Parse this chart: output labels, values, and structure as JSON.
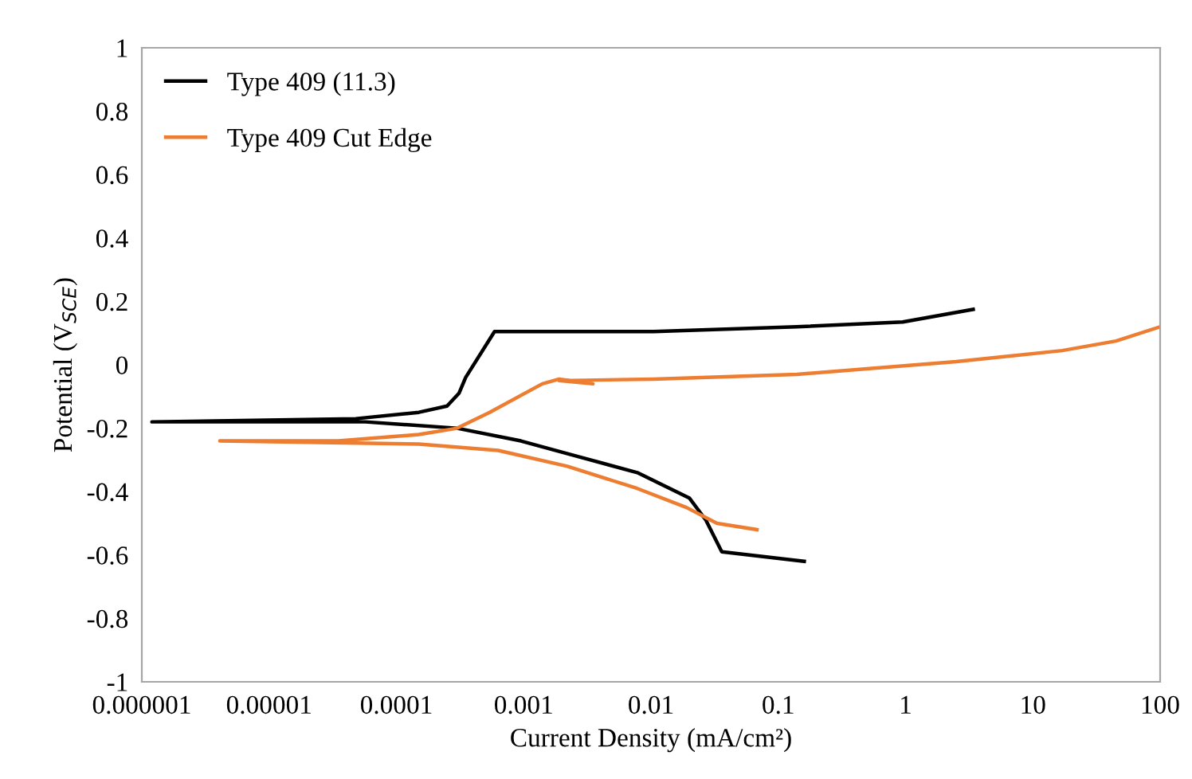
{
  "chart_data": {
    "type": "line",
    "xlabel": "Current Density (mA/cm²)",
    "ylabel": "Potential (V$_{SCE}$)",
    "log": "x",
    "grid": false,
    "legend": "top left",
    "marker": "none",
    "line_style": "solid",
    "xlim": [
      1e-06,
      100
    ],
    "ylim": [
      -1,
      1
    ],
    "xticks": [
      {
        "value": 1e-06,
        "label": "0.000001"
      },
      {
        "value": 1e-05,
        "label": "0.00001"
      },
      {
        "value": 0.0001,
        "label": "0.0001"
      },
      {
        "value": 0.001,
        "label": "0.001"
      },
      {
        "value": 0.01,
        "label": "0.01"
      },
      {
        "value": 0.1,
        "label": "0.1"
      },
      1,
      10,
      100
    ],
    "yticks": [
      -1,
      -0.8,
      -0.6,
      -0.4,
      -0.2,
      0,
      0.2,
      0.4,
      0.6,
      0.8,
      1
    ],
    "series": [
      {
        "name": "Type 409 (11.3)",
        "color": "#000000",
        "x": [
          0.16,
          0.036,
          0.027,
          0.02,
          0.0078,
          0.0027,
          0.00095,
          0.0003,
          5.7e-05,
          1.2e-06,
          4.8e-05,
          0.00015,
          0.00025,
          0.00031,
          0.00035,
          0.00059,
          0.0105,
          0.14,
          0.95,
          3.4
        ],
        "values": [
          -0.62,
          -0.59,
          -0.49,
          -0.42,
          -0.34,
          -0.29,
          -0.24,
          -0.2,
          -0.18,
          -0.18,
          -0.17,
          -0.15,
          -0.13,
          -0.09,
          -0.04,
          0.105,
          0.105,
          0.12,
          0.135,
          0.175
        ]
      },
      {
        "name": "Type 409 Cut Edge",
        "color": "#ed7d31",
        "x": [
          0.068,
          0.033,
          0.019,
          0.0078,
          0.0022,
          0.00063,
          0.00015,
          4.1e-06,
          3.5e-05,
          0.00015,
          0.0003,
          0.00054,
          0.0014,
          0.0019,
          0.0035,
          0.0019,
          0.0105,
          0.14,
          2.5,
          17,
          45,
          100
        ],
        "values": [
          -0.52,
          -0.5,
          -0.45,
          -0.39,
          -0.32,
          -0.27,
          -0.25,
          -0.24,
          -0.24,
          -0.22,
          -0.2,
          -0.15,
          -0.06,
          -0.045,
          -0.06,
          -0.05,
          -0.045,
          -0.03,
          0.01,
          0.045,
          0.075,
          0.12
        ]
      }
    ]
  }
}
